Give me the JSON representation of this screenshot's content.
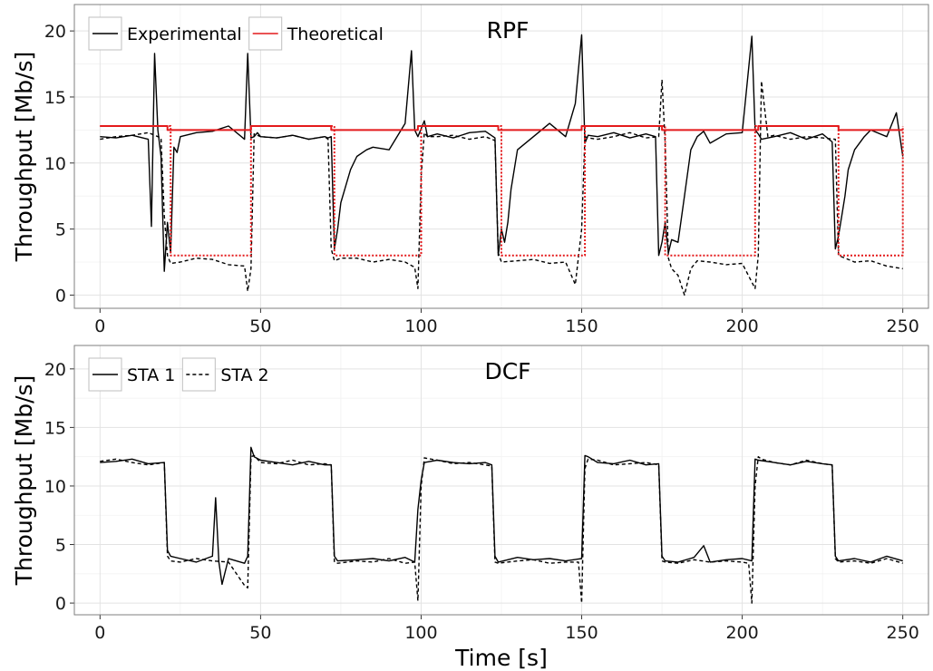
{
  "chart_data": [
    {
      "type": "line",
      "title": "RPF",
      "xlabel": "",
      "ylabel": "Throughput [Mb/s]",
      "xlim": [
        -8,
        258
      ],
      "ylim": [
        -1,
        22
      ],
      "xticks": [
        0,
        50,
        100,
        150,
        200,
        250
      ],
      "yticks": [
        0,
        5,
        10,
        15,
        20
      ],
      "grid": true,
      "legend": {
        "position": "top-left",
        "entries": [
          {
            "label": "Experimental",
            "color": "#000000",
            "dash": "solid"
          },
          {
            "label": "Theoretical",
            "color": "#e41a1c",
            "dash": "solid"
          }
        ]
      },
      "series": [
        {
          "group": "Experimental",
          "color": "#000000",
          "dash": "solid",
          "x": [
            0,
            5,
            10,
            15,
            16,
            17,
            18,
            19,
            20,
            21,
            22,
            23,
            24,
            25,
            30,
            35,
            40,
            45,
            46,
            47,
            48,
            49,
            50,
            55,
            60,
            65,
            70,
            71,
            72,
            73,
            74,
            75,
            78,
            80,
            83,
            85,
            90,
            95,
            97,
            98,
            99,
            100,
            101,
            102,
            105,
            110,
            115,
            120,
            123,
            124,
            125,
            126,
            127,
            128,
            130,
            140,
            145,
            148,
            150,
            151,
            152,
            155,
            160,
            165,
            170,
            173,
            174,
            175,
            176,
            177,
            178,
            180,
            182,
            184,
            186,
            188,
            190,
            195,
            200,
            203,
            204,
            205,
            206,
            210,
            215,
            220,
            225,
            228,
            229,
            230,
            231,
            232,
            233,
            235,
            238,
            240,
            245,
            248,
            250
          ],
          "y": [
            12.0,
            11.9,
            12.1,
            11.8,
            5.2,
            18.3,
            12.5,
            10.5,
            1.8,
            5.5,
            3.2,
            11.2,
            10.8,
            12.0,
            12.3,
            12.4,
            12.8,
            11.8,
            18.3,
            11.9,
            12.0,
            12.3,
            12.0,
            11.9,
            12.1,
            11.8,
            12.0,
            11.9,
            12.0,
            3.5,
            5.0,
            7.0,
            9.5,
            10.5,
            11.0,
            11.2,
            11.0,
            13.0,
            18.5,
            12.5,
            12.0,
            12.6,
            13.2,
            12.0,
            12.2,
            11.9,
            12.3,
            12.4,
            11.9,
            3.0,
            5.0,
            4.0,
            5.5,
            8.0,
            11.0,
            13.0,
            12.0,
            14.5,
            19.7,
            11.5,
            12.1,
            12.0,
            12.3,
            11.9,
            12.2,
            12.0,
            3.0,
            4.0,
            5.5,
            3.2,
            4.2,
            4.0,
            7.5,
            11.0,
            12.0,
            12.4,
            11.5,
            12.2,
            12.3,
            19.6,
            12.5,
            12.2,
            11.8,
            12.0,
            12.3,
            11.8,
            12.2,
            11.6,
            3.5,
            4.5,
            6.0,
            7.5,
            9.5,
            11.0,
            12.0,
            12.5,
            12.0,
            13.8,
            10.5
          ]
        },
        {
          "group": "Experimental",
          "color": "#000000",
          "dash": "dashed",
          "x": [
            0,
            5,
            10,
            15,
            19,
            20,
            21,
            22,
            25,
            30,
            35,
            40,
            45,
            46,
            47,
            48,
            50,
            55,
            60,
            65,
            70,
            71,
            72,
            73,
            75,
            80,
            85,
            90,
            95,
            98,
            99,
            100,
            101,
            102,
            105,
            110,
            115,
            120,
            123,
            124,
            125,
            130,
            135,
            140,
            145,
            148,
            150,
            151,
            152,
            155,
            160,
            165,
            170,
            174,
            175,
            176,
            177,
            178,
            180,
            182,
            184,
            186,
            190,
            195,
            200,
            204,
            205,
            206,
            208,
            210,
            215,
            220,
            225,
            229,
            230,
            235,
            240,
            245,
            250
          ],
          "y": [
            11.8,
            12.0,
            12.1,
            12.3,
            11.9,
            6.0,
            3.0,
            2.4,
            2.5,
            2.8,
            2.7,
            2.3,
            2.2,
            0.3,
            2.0,
            12.2,
            12.0,
            11.9,
            12.1,
            11.8,
            12.0,
            11.8,
            3.5,
            2.6,
            2.8,
            2.8,
            2.5,
            2.7,
            2.5,
            2.1,
            0.5,
            9.0,
            12.3,
            12.0,
            12.0,
            12.1,
            11.8,
            12.0,
            11.7,
            3.2,
            2.5,
            2.6,
            2.7,
            2.4,
            2.5,
            0.8,
            5.0,
            12.0,
            11.9,
            11.8,
            12.0,
            12.3,
            11.9,
            12.0,
            16.3,
            11.5,
            2.8,
            2.0,
            1.5,
            0.0,
            2.0,
            2.6,
            2.5,
            2.3,
            2.4,
            0.5,
            3.0,
            16.2,
            12.0,
            12.1,
            11.8,
            12.0,
            11.9,
            11.8,
            3.0,
            2.5,
            2.6,
            2.2,
            2.0
          ]
        },
        {
          "group": "Theoretical",
          "color": "#e41a1c",
          "dash": "solid",
          "x": [
            0,
            21,
            21,
            47,
            47,
            72,
            72,
            99,
            99,
            124,
            124,
            150,
            150,
            175,
            175,
            205,
            205,
            230,
            230,
            250
          ],
          "y": [
            12.8,
            12.8,
            12.5,
            12.5,
            12.8,
            12.8,
            12.5,
            12.5,
            12.8,
            12.8,
            12.5,
            12.5,
            12.8,
            12.8,
            12.5,
            12.5,
            12.8,
            12.8,
            12.5,
            12.5
          ]
        },
        {
          "group": "Theoretical",
          "color": "#e41a1c",
          "dash": "dotted",
          "x": [
            0,
            22,
            22,
            47,
            47,
            73,
            73,
            100,
            100,
            125,
            125,
            151,
            151,
            176,
            176,
            204,
            204,
            230,
            230,
            250,
            250
          ],
          "y": [
            12.8,
            12.8,
            3.0,
            3.0,
            12.8,
            12.8,
            3.0,
            3.0,
            12.8,
            12.8,
            3.0,
            3.0,
            12.8,
            12.8,
            3.0,
            3.0,
            12.8,
            12.8,
            3.0,
            3.0,
            12.8
          ]
        }
      ]
    },
    {
      "type": "line",
      "title": "DCF",
      "xlabel": "Time [s]",
      "ylabel": "Throughput [Mb/s]",
      "xlim": [
        -8,
        258
      ],
      "ylim": [
        -1,
        22
      ],
      "xticks": [
        0,
        50,
        100,
        150,
        200,
        250
      ],
      "yticks": [
        0,
        5,
        10,
        15,
        20
      ],
      "grid": true,
      "legend": {
        "position": "top-left",
        "entries": [
          {
            "label": "STA 1",
            "color": "#000000",
            "dash": "solid"
          },
          {
            "label": "STA 2",
            "color": "#000000",
            "dash": "dashed"
          }
        ]
      },
      "series": [
        {
          "name": "STA 1",
          "color": "#000000",
          "dash": "solid",
          "x": [
            0,
            5,
            10,
            15,
            20,
            21,
            22,
            25,
            30,
            35,
            36,
            37,
            38,
            40,
            45,
            46,
            47,
            48,
            50,
            55,
            60,
            65,
            70,
            72,
            73,
            74,
            80,
            85,
            90,
            95,
            98,
            99,
            100,
            101,
            105,
            110,
            115,
            120,
            122,
            123,
            124,
            130,
            135,
            140,
            145,
            150,
            151,
            152,
            155,
            160,
            165,
            170,
            174,
            175,
            176,
            180,
            185,
            188,
            190,
            195,
            200,
            203,
            204,
            205,
            210,
            215,
            220,
            225,
            228,
            229,
            230,
            235,
            240,
            245,
            250
          ],
          "y": [
            12.0,
            12.1,
            12.3,
            11.9,
            12.0,
            4.5,
            4.0,
            3.8,
            3.5,
            4.0,
            9.0,
            3.5,
            1.6,
            3.8,
            3.4,
            4.0,
            13.3,
            12.5,
            12.2,
            12.0,
            11.8,
            12.1,
            11.8,
            11.8,
            4.0,
            3.6,
            3.7,
            3.8,
            3.6,
            3.9,
            3.5,
            8.0,
            10.5,
            12.0,
            12.2,
            12.0,
            11.9,
            12.0,
            11.8,
            4.0,
            3.5,
            3.9,
            3.7,
            3.8,
            3.6,
            3.8,
            12.6,
            12.5,
            12.0,
            11.9,
            12.2,
            11.8,
            11.9,
            4.0,
            3.6,
            3.5,
            3.9,
            4.9,
            3.5,
            3.7,
            3.8,
            3.6,
            12.3,
            12.2,
            12.0,
            11.8,
            12.1,
            11.9,
            11.8,
            4.0,
            3.6,
            3.8,
            3.5,
            4.0,
            3.6
          ]
        },
        {
          "name": "STA 2",
          "color": "#000000",
          "dash": "dashed",
          "x": [
            0,
            5,
            10,
            15,
            20,
            21,
            22,
            25,
            30,
            35,
            40,
            45,
            46,
            47,
            48,
            50,
            55,
            60,
            65,
            70,
            72,
            73,
            74,
            80,
            85,
            90,
            95,
            98,
            99,
            100,
            101,
            105,
            110,
            115,
            120,
            122,
            123,
            124,
            130,
            135,
            140,
            145,
            149,
            150,
            151,
            152,
            155,
            160,
            165,
            170,
            174,
            175,
            176,
            180,
            185,
            190,
            195,
            200,
            202,
            203,
            204,
            205,
            206,
            210,
            215,
            220,
            225,
            228,
            229,
            230,
            235,
            240,
            245,
            250
          ],
          "y": [
            12.1,
            12.3,
            12.0,
            11.8,
            12.0,
            4.0,
            3.6,
            3.5,
            3.8,
            3.6,
            3.5,
            1.5,
            1.3,
            12.5,
            12.6,
            12.0,
            11.9,
            12.2,
            11.8,
            11.9,
            11.8,
            3.5,
            3.4,
            3.6,
            3.5,
            3.8,
            3.4,
            3.5,
            0.2,
            10.0,
            12.4,
            12.2,
            11.9,
            12.0,
            11.8,
            11.7,
            3.5,
            3.4,
            3.6,
            3.7,
            3.4,
            3.5,
            3.5,
            0.0,
            11.5,
            12.3,
            12.2,
            11.8,
            11.9,
            12.0,
            11.8,
            3.6,
            3.5,
            3.4,
            3.7,
            3.5,
            3.6,
            3.5,
            3.4,
            0.0,
            10.0,
            12.5,
            12.3,
            12.0,
            11.8,
            12.2,
            11.9,
            11.8,
            3.8,
            3.5,
            3.6,
            3.4,
            3.8,
            3.4
          ]
        }
      ]
    }
  ]
}
